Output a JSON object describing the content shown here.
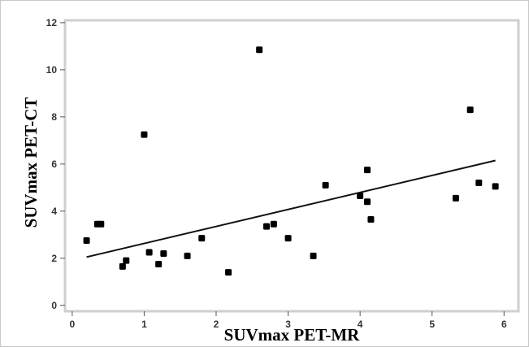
{
  "chart_data": {
    "type": "scatter",
    "title": "",
    "xlabel": "SUVmax PET-MR",
    "ylabel": "SUVmax PET-CT",
    "xlim": [
      -0.1,
      6.2
    ],
    "ylim": [
      -0.25,
      12.1
    ],
    "xticks": [
      0,
      1,
      2,
      3,
      4,
      5,
      6
    ],
    "yticks": [
      0,
      2,
      4,
      6,
      8,
      10,
      12
    ],
    "grid": false,
    "legend": "none",
    "colors": {
      "marker": "#000000",
      "frame": "#cfcfcf",
      "border": "#c8c8c8"
    },
    "series": [
      {
        "points": [
          [
            0.2,
            2.75
          ],
          [
            0.35,
            3.45
          ],
          [
            0.4,
            3.45
          ],
          [
            0.7,
            1.65
          ],
          [
            0.75,
            1.9
          ],
          [
            1.0,
            7.25
          ],
          [
            1.07,
            2.25
          ],
          [
            1.2,
            1.75
          ],
          [
            1.27,
            2.2
          ],
          [
            1.6,
            2.1
          ],
          [
            1.8,
            2.85
          ],
          [
            2.17,
            1.4
          ],
          [
            2.6,
            10.85
          ],
          [
            2.7,
            3.35
          ],
          [
            2.8,
            3.45
          ],
          [
            3.0,
            2.85
          ],
          [
            3.35,
            2.1
          ],
          [
            3.52,
            5.1
          ],
          [
            4.0,
            4.65
          ],
          [
            4.1,
            5.75
          ],
          [
            4.1,
            4.4
          ],
          [
            4.15,
            3.65
          ],
          [
            5.33,
            4.55
          ],
          [
            5.53,
            8.3
          ],
          [
            5.65,
            5.2
          ],
          [
            5.88,
            5.05
          ]
        ]
      }
    ],
    "regression_line": {
      "x": [
        0.2,
        5.88
      ],
      "y": [
        2.05,
        6.15
      ]
    }
  }
}
